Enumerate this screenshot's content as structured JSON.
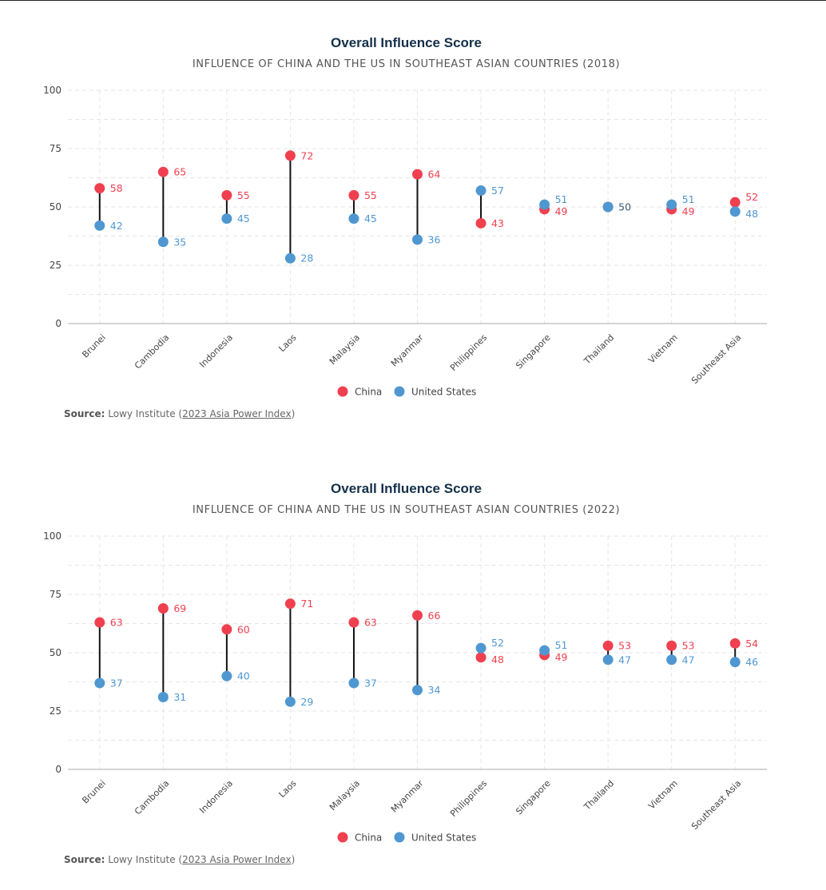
{
  "colors": {
    "china": "#f0404f",
    "us": "#4f97d1"
  },
  "chart_data": [
    {
      "type": "dumbbell",
      "title": "Overall Influence Score",
      "subtitle": "INFLUENCE OF CHINA AND THE US IN SOUTHEAST ASIAN COUNTRIES (2018)",
      "ylim": [
        0,
        100
      ],
      "yticks": [
        0,
        25,
        50,
        75,
        100
      ],
      "categories": [
        "Brunei",
        "Cambodia",
        "Indonesia",
        "Laos",
        "Malaysia",
        "Myanmar",
        "Philippines",
        "Singapore",
        "Thailand",
        "Vietnam",
        "Southeast Asia"
      ],
      "series": [
        {
          "name": "China",
          "values": [
            58,
            65,
            55,
            72,
            55,
            64,
            43,
            49,
            50,
            49,
            52
          ]
        },
        {
          "name": "United States",
          "values": [
            42,
            35,
            45,
            28,
            45,
            36,
            57,
            51,
            50,
            51,
            48
          ]
        }
      ],
      "legend": [
        "China",
        "United States"
      ],
      "source_label": "Source:",
      "source_text": "Lowy Institute (",
      "source_link": "2023 Asia Power Index",
      "source_close": ")"
    },
    {
      "type": "dumbbell",
      "title": "Overall Influence Score",
      "subtitle": "INFLUENCE OF CHINA AND THE US IN SOUTHEAST ASIAN COUNTRIES (2022)",
      "ylim": [
        0,
        100
      ],
      "yticks": [
        0,
        25,
        50,
        75,
        100
      ],
      "categories": [
        "Brunei",
        "Cambodia",
        "Indonesia",
        "Laos",
        "Malaysia",
        "Myanmar",
        "Philippines",
        "Singapore",
        "Thailand",
        "Vietnam",
        "Southeast Asia"
      ],
      "series": [
        {
          "name": "China",
          "values": [
            63,
            69,
            60,
            71,
            63,
            66,
            48,
            49,
            53,
            53,
            54
          ]
        },
        {
          "name": "United States",
          "values": [
            37,
            31,
            40,
            29,
            37,
            34,
            52,
            51,
            47,
            47,
            46
          ]
        }
      ],
      "legend": [
        "China",
        "United States"
      ],
      "source_label": "Source:",
      "source_text": "Lowy Institute (",
      "source_link": "2023 Asia Power Index",
      "source_close": ")"
    }
  ]
}
